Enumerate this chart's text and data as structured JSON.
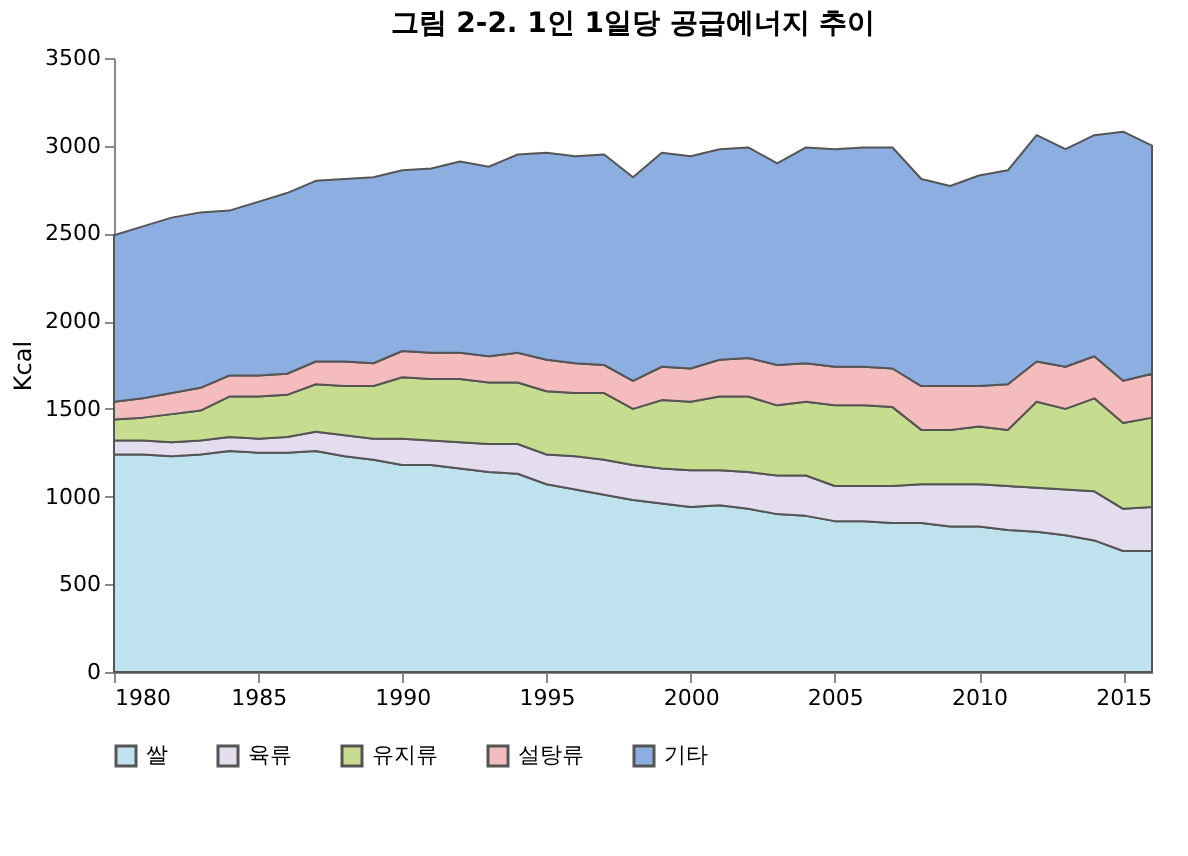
{
  "chart_data": {
    "type": "area",
    "title": "그림 2-2. 1인 1일당 공급에너지 추이",
    "ylabel": "Kcal",
    "stacked": true,
    "legend": "bottom",
    "grid": false,
    "x": [
      1980,
      1981,
      1982,
      1983,
      1984,
      1985,
      1986,
      1987,
      1988,
      1989,
      1990,
      1991,
      1992,
      1993,
      1994,
      1995,
      1996,
      1997,
      1998,
      1999,
      2000,
      2001,
      2002,
      2003,
      2004,
      2005,
      2006,
      2007,
      2008,
      2009,
      2010,
      2011,
      2012,
      2013,
      2014,
      2015,
      2016
    ],
    "xlim": [
      1980,
      2016
    ],
    "xticks": [
      1980,
      1985,
      1990,
      1995,
      2000,
      2005,
      2010,
      2015
    ],
    "ylim": [
      0,
      3500
    ],
    "yticks": [
      0,
      500,
      1000,
      1500,
      2000,
      2500,
      3000,
      3500
    ],
    "series": [
      {
        "name": "쌀",
        "color": "#bfe3ee",
        "values": [
          1240,
          1240,
          1230,
          1240,
          1260,
          1250,
          1250,
          1260,
          1230,
          1210,
          1180,
          1180,
          1160,
          1140,
          1130,
          1070,
          1040,
          1010,
          980,
          960,
          940,
          950,
          930,
          900,
          890,
          860,
          860,
          850,
          850,
          830,
          830,
          810,
          800,
          780,
          750,
          690,
          690
        ]
      },
      {
        "name": "육류",
        "color": "#e4dcef",
        "values": [
          80,
          80,
          80,
          80,
          80,
          80,
          90,
          110,
          120,
          120,
          150,
          140,
          150,
          160,
          170,
          170,
          190,
          200,
          200,
          200,
          210,
          200,
          210,
          220,
          230,
          200,
          200,
          210,
          220,
          240,
          240,
          250,
          250,
          260,
          280,
          240,
          250
        ]
      },
      {
        "name": "유지류",
        "color": "#c6dc8e",
        "values": [
          120,
          130,
          160,
          170,
          230,
          240,
          240,
          270,
          280,
          300,
          350,
          350,
          360,
          350,
          350,
          360,
          360,
          380,
          320,
          390,
          390,
          420,
          430,
          400,
          420,
          460,
          460,
          450,
          310,
          310,
          330,
          320,
          490,
          460,
          530,
          490,
          510
        ]
      },
      {
        "name": "설탕류",
        "color": "#f4bcbc",
        "values": [
          100,
          110,
          120,
          130,
          120,
          120,
          120,
          130,
          140,
          130,
          150,
          150,
          150,
          150,
          170,
          180,
          170,
          160,
          160,
          190,
          190,
          210,
          220,
          230,
          220,
          220,
          220,
          220,
          250,
          250,
          230,
          260,
          230,
          240,
          240,
          240,
          250
        ]
      },
      {
        "name": "기타",
        "color": "#8caee0",
        "values": [
          950,
          980,
          1000,
          1000,
          940,
          990,
          1030,
          1030,
          1040,
          1060,
          1030,
          1050,
          1090,
          1080,
          1130,
          1180,
          1180,
          1200,
          1160,
          1220,
          1210,
          1200,
          1200,
          1150,
          1230,
          1240,
          1250,
          1260,
          1180,
          1140,
          1200,
          1220,
          1290,
          1240,
          1260,
          1420,
          1300
        ]
      }
    ]
  }
}
